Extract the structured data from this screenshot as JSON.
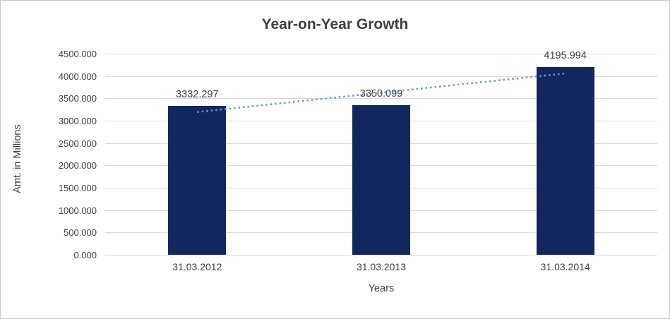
{
  "chart_data": {
    "type": "bar",
    "title": "Year-on-Year Growth",
    "categories": [
      "31.03.2012",
      "31.03.2013",
      "31.03.2014"
    ],
    "values": [
      3332.297,
      3350.099,
      4195.994
    ],
    "data_labels": [
      "3332.297",
      "3350.099",
      "4195.994"
    ],
    "xlabel": "Years",
    "ylabel": "Amt. in Millions",
    "ylim": [
      0,
      4500
    ],
    "ytick_step": 500,
    "ytick_labels": [
      "0.000",
      "500.000",
      "1000.000",
      "1500.000",
      "2000.000",
      "2500.000",
      "3000.000",
      "3500.000",
      "4000.000",
      "4500.000"
    ],
    "grid": true,
    "legend": false,
    "bar_color": "#12275e",
    "trendline": {
      "type": "linear",
      "style": "dotted",
      "color": "#5b9bd5"
    }
  }
}
